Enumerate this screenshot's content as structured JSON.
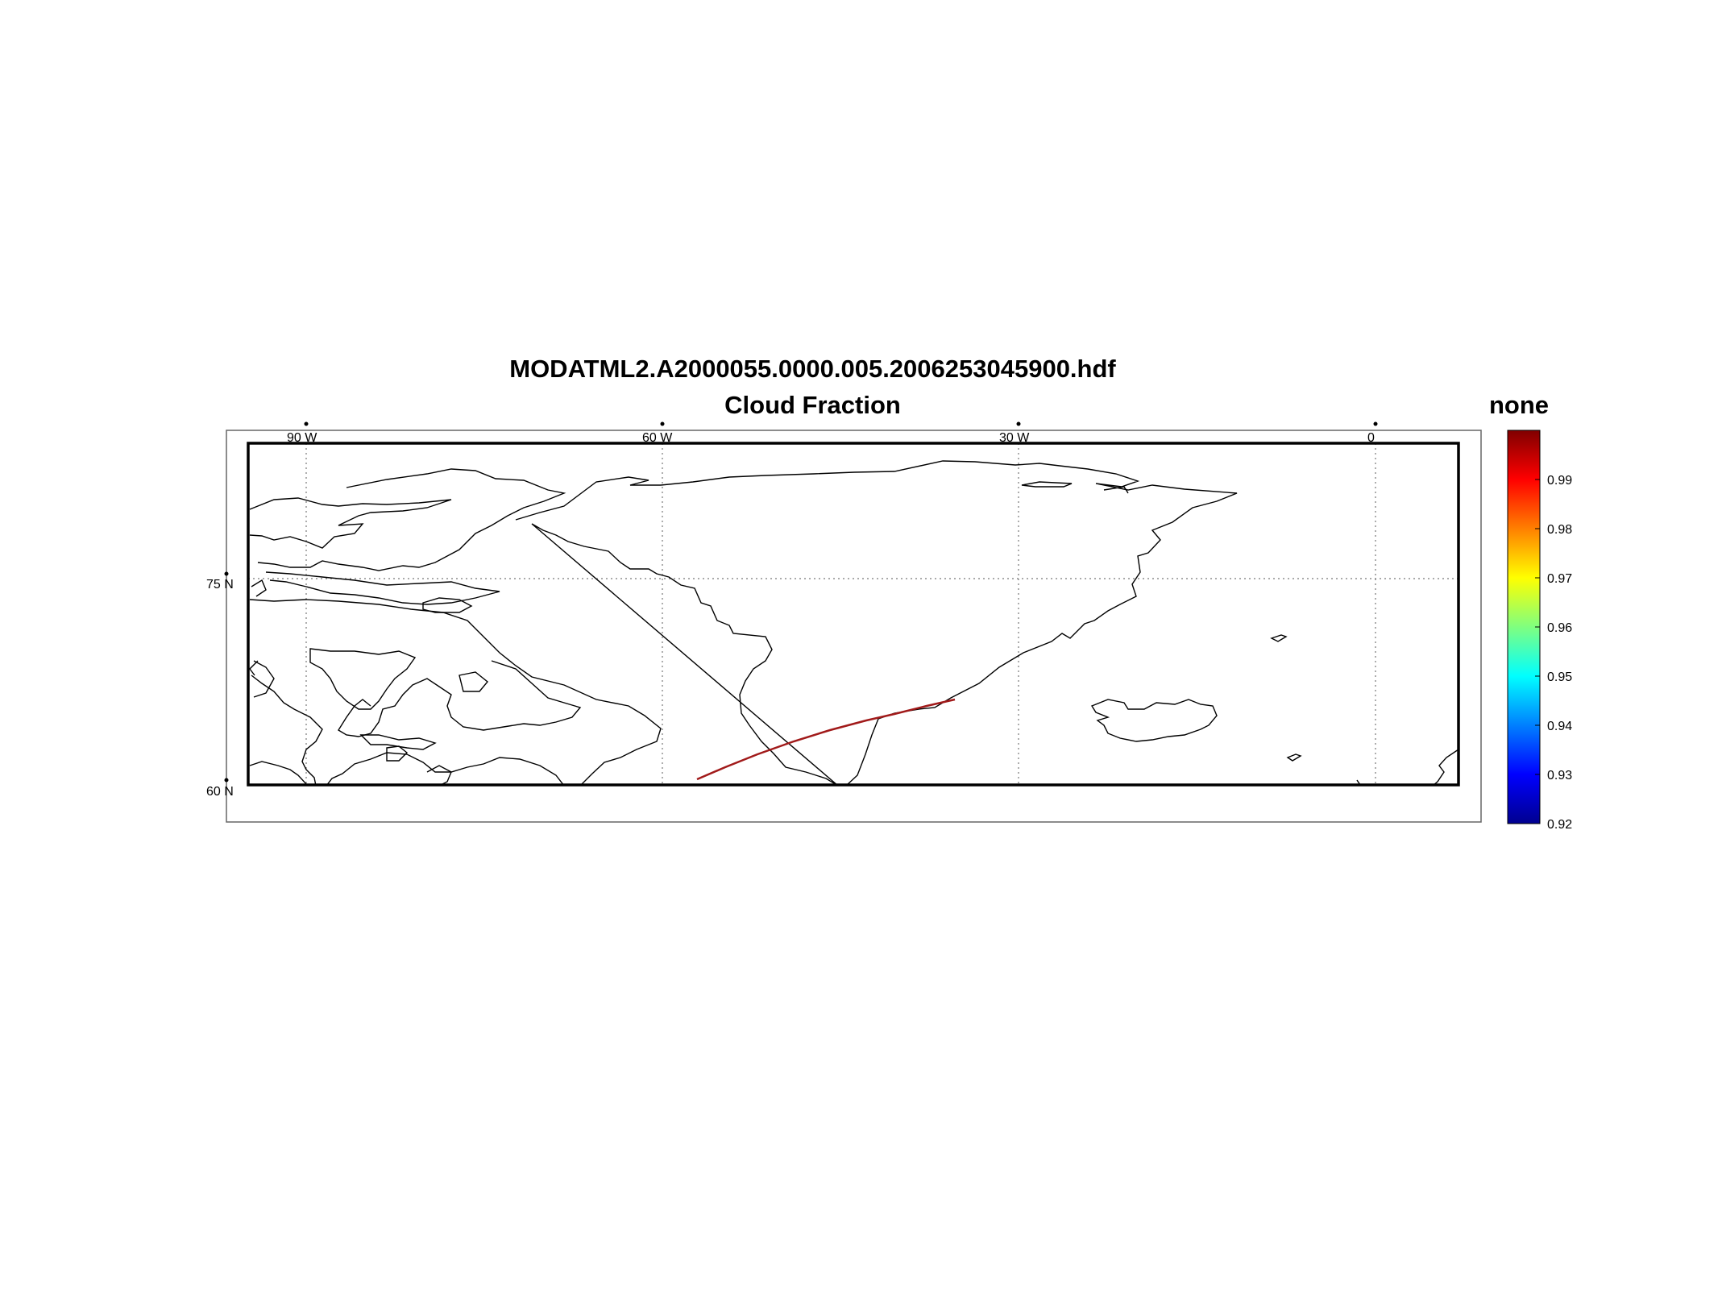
{
  "figure": {
    "title_line1": "MODATML2.A2000055.0000.005.2006253045900.hdf",
    "title_line2": "Cloud Fraction",
    "colorbar_title": "none"
  },
  "map": {
    "lon_labels": [
      "90 W",
      "60 W",
      "30 W",
      "0"
    ],
    "lat_labels": [
      "75 N",
      "60 N"
    ],
    "lon_range": [
      -95,
      7
    ],
    "lat_range": [
      60,
      84
    ]
  },
  "colorbar": {
    "tick_labels": [
      "0.99",
      "0.98",
      "0.97",
      "0.96",
      "0.95",
      "0.94",
      "0.93",
      "0.92"
    ],
    "range": [
      0.92,
      1.0
    ]
  },
  "colors": {
    "swath": "#a11a1a",
    "frame": "#000000",
    "grid": "#777777"
  }
}
